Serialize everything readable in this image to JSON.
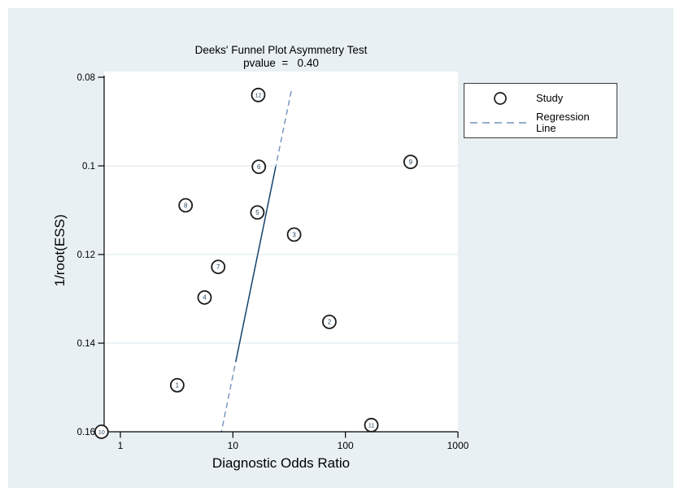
{
  "title": {
    "line1": "Deeks' Funnel Plot Asymmetry Test",
    "line2": "pvalue  =   0.40"
  },
  "legend": {
    "items": [
      {
        "label": "Study",
        "marker": "circle"
      },
      {
        "label": "Regression Line",
        "marker": "dashed-line"
      }
    ]
  },
  "colors": {
    "panel_bg": "#e8f0f3",
    "plot_bg": "#ffffff",
    "gridline": "#e2ecf1",
    "axis": "#000000",
    "marker_stroke": "#1a1a1a",
    "marker_fill": "#ffffff",
    "marker_number": "#2c4a66",
    "regression_solid": "#1a476f",
    "regression_dash": "#7291bb",
    "legend_border": "#3a3a3a"
  },
  "chart_data": {
    "type": "scatter",
    "title": "Deeks' Funnel Plot Asymmetry Test",
    "subtitle": "pvalue  =   0.40",
    "xlabel": "Diagnostic Odds Ratio",
    "ylabel": "1/root(ESS)",
    "x_scale": "log10",
    "xlim": [
      0.72,
      1000
    ],
    "ylim": [
      0.08,
      0.16
    ],
    "y_axis_reversed": true,
    "grid": "horizontal gridlines at inner y ticks",
    "legend_position": "outside top right",
    "x_ticks": [
      1,
      10,
      100,
      1000
    ],
    "x_tick_labels": [
      "1",
      "10",
      "100",
      "1000"
    ],
    "y_ticks": [
      0.08,
      0.1,
      0.12,
      0.14,
      0.16
    ],
    "y_tick_labels": [
      "0.08",
      "0.1",
      "0.12",
      "0.14",
      "0.16"
    ],
    "points": [
      {
        "study": "1",
        "dor": 3.2,
        "inv_root_ess": 0.1495
      },
      {
        "study": "2",
        "dor": 72,
        "inv_root_ess": 0.1352
      },
      {
        "study": "3",
        "dor": 35,
        "inv_root_ess": 0.1155
      },
      {
        "study": "4",
        "dor": 5.6,
        "inv_root_ess": 0.1297
      },
      {
        "study": "5",
        "dor": 16.5,
        "inv_root_ess": 0.1105
      },
      {
        "study": "6",
        "dor": 17,
        "inv_root_ess": 0.1002
      },
      {
        "study": "7",
        "dor": 7.4,
        "inv_root_ess": 0.1228
      },
      {
        "study": "8",
        "dor": 3.8,
        "inv_root_ess": 0.1089
      },
      {
        "study": "9",
        "dor": 380,
        "inv_root_ess": 0.0991
      },
      {
        "study": "10",
        "dor": 0.68,
        "inv_root_ess": 0.16
      },
      {
        "study": "11",
        "dor": 170,
        "inv_root_ess": 0.1585
      },
      {
        "study": "12",
        "dor": 16.8,
        "inv_root_ess": 0.084
      }
    ],
    "regression_line": {
      "style": "dashed, with solid mid-segment",
      "x": [
        33,
        7.9
      ],
      "y": [
        0.0831,
        0.16
      ],
      "solid_segment": {
        "x": [
          24,
          10.6
        ],
        "y": [
          0.1002,
          0.1442
        ]
      }
    }
  }
}
